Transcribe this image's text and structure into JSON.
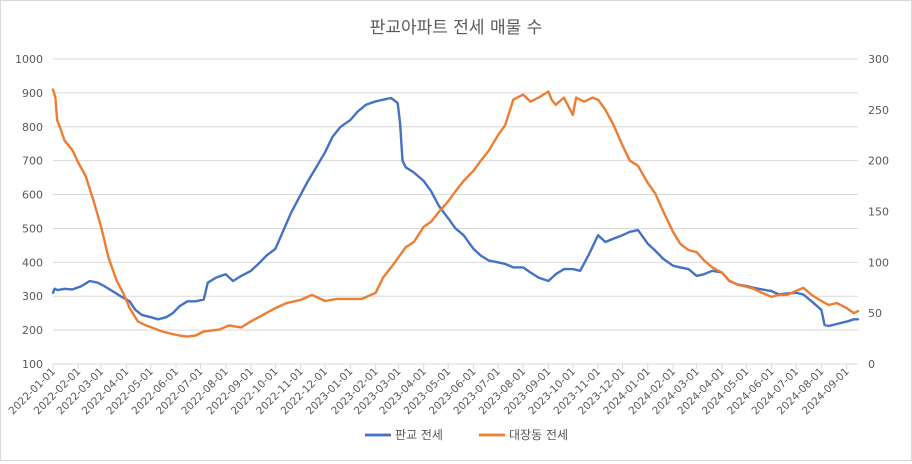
{
  "chart_data": {
    "type": "line",
    "title": "판교아파트 전세 매물 수",
    "xlabel": "",
    "ylabel": "",
    "ylim": [
      100,
      1000
    ],
    "y2lim": [
      0,
      300
    ],
    "yticks": [
      "100",
      "200",
      "300",
      "400",
      "500",
      "600",
      "700",
      "800",
      "900",
      "1000"
    ],
    "y2ticks": [
      "0",
      "50",
      "100",
      "150",
      "200",
      "250",
      "300"
    ],
    "x_ticks": [
      "2022-01-01",
      "2022-02-01",
      "2022-03-01",
      "2022-04-01",
      "2022-05-01",
      "2022-06-01",
      "2022-07-01",
      "2022-08-01",
      "2022-09-01",
      "2022-10-01",
      "2022-11-01",
      "2022-12-01",
      "2023-01-01",
      "2023-02-01",
      "2023-03-01",
      "2023-04-01",
      "2023-05-01",
      "2023-06-01",
      "2023-07-01",
      "2023-08-01",
      "2023-09-01",
      "2023-10-01",
      "2023-11-01",
      "2023-12-01",
      "2024-01-01",
      "2024-02-01",
      "2024-03-01",
      "2024-04-01",
      "2024-05-01",
      "2024-06-01",
      "2024-07-01",
      "2024-08-01",
      "2024-09-01"
    ],
    "x_end": "2024-09-15",
    "grid": true,
    "legend_position": "bottom",
    "series": [
      {
        "name": "판교 전세",
        "axis": "left",
        "color": "#4472C4",
        "points": [
          [
            "2022-01-01",
            310
          ],
          [
            "2022-01-03",
            322
          ],
          [
            "2022-01-07",
            318
          ],
          [
            "2022-01-15",
            322
          ],
          [
            "2022-01-25",
            320
          ],
          [
            "2022-02-05",
            330
          ],
          [
            "2022-02-15",
            345
          ],
          [
            "2022-02-25",
            340
          ],
          [
            "2022-03-05",
            330
          ],
          [
            "2022-03-15",
            315
          ],
          [
            "2022-03-25",
            300
          ],
          [
            "2022-04-05",
            285
          ],
          [
            "2022-04-12",
            260
          ],
          [
            "2022-04-20",
            245
          ],
          [
            "2022-05-01",
            238
          ],
          [
            "2022-05-10",
            232
          ],
          [
            "2022-05-20",
            238
          ],
          [
            "2022-05-28",
            250
          ],
          [
            "2022-06-05",
            270
          ],
          [
            "2022-06-15",
            285
          ],
          [
            "2022-06-25",
            285
          ],
          [
            "2022-07-05",
            290
          ],
          [
            "2022-07-10",
            340
          ],
          [
            "2022-07-20",
            355
          ],
          [
            "2022-08-01",
            365
          ],
          [
            "2022-08-10",
            345
          ],
          [
            "2022-08-20",
            360
          ],
          [
            "2022-09-01",
            375
          ],
          [
            "2022-09-10",
            395
          ],
          [
            "2022-09-20",
            420
          ],
          [
            "2022-10-01",
            440
          ],
          [
            "2022-10-10",
            490
          ],
          [
            "2022-10-20",
            545
          ],
          [
            "2022-11-01",
            600
          ],
          [
            "2022-11-10",
            640
          ],
          [
            "2022-11-20",
            680
          ],
          [
            "2022-12-01",
            725
          ],
          [
            "2022-12-10",
            770
          ],
          [
            "2022-12-20",
            800
          ],
          [
            "2023-01-01",
            820
          ],
          [
            "2023-01-10",
            845
          ],
          [
            "2023-01-20",
            865
          ],
          [
            "2023-02-01",
            875
          ],
          [
            "2023-02-10",
            880
          ],
          [
            "2023-02-20",
            885
          ],
          [
            "2023-02-28",
            870
          ],
          [
            "2023-03-03",
            810
          ],
          [
            "2023-03-06",
            700
          ],
          [
            "2023-03-10",
            680
          ],
          [
            "2023-03-20",
            665
          ],
          [
            "2023-04-01",
            640
          ],
          [
            "2023-04-10",
            610
          ],
          [
            "2023-04-20",
            565
          ],
          [
            "2023-05-01",
            530
          ],
          [
            "2023-05-10",
            500
          ],
          [
            "2023-05-20",
            480
          ],
          [
            "2023-06-01",
            440
          ],
          [
            "2023-06-10",
            420
          ],
          [
            "2023-06-20",
            405
          ],
          [
            "2023-07-01",
            400
          ],
          [
            "2023-07-10",
            395
          ],
          [
            "2023-07-20",
            385
          ],
          [
            "2023-08-01",
            385
          ],
          [
            "2023-08-10",
            370
          ],
          [
            "2023-08-20",
            355
          ],
          [
            "2023-09-01",
            345
          ],
          [
            "2023-09-10",
            365
          ],
          [
            "2023-09-20",
            380
          ],
          [
            "2023-10-01",
            380
          ],
          [
            "2023-10-10",
            375
          ],
          [
            "2023-10-20",
            420
          ],
          [
            "2023-11-01",
            480
          ],
          [
            "2023-11-10",
            460
          ],
          [
            "2023-11-20",
            470
          ],
          [
            "2023-12-01",
            480
          ],
          [
            "2023-12-10",
            490
          ],
          [
            "2023-12-20",
            495
          ],
          [
            "2024-01-01",
            455
          ],
          [
            "2024-01-10",
            435
          ],
          [
            "2024-01-20",
            410
          ],
          [
            "2024-02-01",
            390
          ],
          [
            "2024-02-10",
            385
          ],
          [
            "2024-02-20",
            380
          ],
          [
            "2024-03-01",
            360
          ],
          [
            "2024-03-10",
            365
          ],
          [
            "2024-03-20",
            375
          ],
          [
            "2024-04-01",
            370
          ],
          [
            "2024-04-10",
            345
          ],
          [
            "2024-04-20",
            335
          ],
          [
            "2024-05-01",
            330
          ],
          [
            "2024-05-10",
            325
          ],
          [
            "2024-05-20",
            320
          ],
          [
            "2024-06-01",
            315
          ],
          [
            "2024-06-10",
            305
          ],
          [
            "2024-06-20",
            308
          ],
          [
            "2024-07-01",
            310
          ],
          [
            "2024-07-10",
            305
          ],
          [
            "2024-07-20",
            285
          ],
          [
            "2024-08-01",
            260
          ],
          [
            "2024-08-05",
            215
          ],
          [
            "2024-08-10",
            212
          ],
          [
            "2024-08-20",
            218
          ],
          [
            "2024-09-01",
            225
          ],
          [
            "2024-09-10",
            232
          ],
          [
            "2024-09-15",
            232
          ]
        ]
      },
      {
        "name": "대장동 전세",
        "axis": "right",
        "color": "#ED7D31",
        "points": [
          [
            "2022-01-01",
            270
          ],
          [
            "2022-01-04",
            262
          ],
          [
            "2022-01-06",
            240
          ],
          [
            "2022-01-10",
            232
          ],
          [
            "2022-01-15",
            220
          ],
          [
            "2022-01-25",
            210
          ],
          [
            "2022-02-01",
            198
          ],
          [
            "2022-02-10",
            185
          ],
          [
            "2022-02-20",
            160
          ],
          [
            "2022-03-01",
            135
          ],
          [
            "2022-03-10",
            105
          ],
          [
            "2022-03-20",
            82
          ],
          [
            "2022-03-28",
            70
          ],
          [
            "2022-04-05",
            55
          ],
          [
            "2022-04-15",
            42
          ],
          [
            "2022-04-25",
            38
          ],
          [
            "2022-05-05",
            35
          ],
          [
            "2022-05-15",
            32
          ],
          [
            "2022-05-25",
            30
          ],
          [
            "2022-06-05",
            28
          ],
          [
            "2022-06-15",
            27
          ],
          [
            "2022-06-25",
            28
          ],
          [
            "2022-07-05",
            32
          ],
          [
            "2022-07-15",
            33
          ],
          [
            "2022-07-25",
            34
          ],
          [
            "2022-08-05",
            38
          ],
          [
            "2022-08-20",
            36
          ],
          [
            "2022-09-01",
            42
          ],
          [
            "2022-09-15",
            48
          ],
          [
            "2022-10-01",
            55
          ],
          [
            "2022-10-15",
            60
          ],
          [
            "2022-11-01",
            63
          ],
          [
            "2022-11-15",
            68
          ],
          [
            "2022-12-01",
            62
          ],
          [
            "2022-12-15",
            64
          ],
          [
            "2023-01-01",
            64
          ],
          [
            "2023-01-15",
            64
          ],
          [
            "2023-02-01",
            70
          ],
          [
            "2023-02-10",
            85
          ],
          [
            "2023-02-20",
            95
          ],
          [
            "2023-03-01",
            105
          ],
          [
            "2023-03-10",
            115
          ],
          [
            "2023-03-20",
            120
          ],
          [
            "2023-04-01",
            135
          ],
          [
            "2023-04-10",
            140
          ],
          [
            "2023-04-20",
            150
          ],
          [
            "2023-05-01",
            160
          ],
          [
            "2023-05-10",
            170
          ],
          [
            "2023-05-20",
            180
          ],
          [
            "2023-06-01",
            190
          ],
          [
            "2023-06-10",
            200
          ],
          [
            "2023-06-20",
            210
          ],
          [
            "2023-07-01",
            225
          ],
          [
            "2023-07-10",
            235
          ],
          [
            "2023-07-20",
            260
          ],
          [
            "2023-08-01",
            265
          ],
          [
            "2023-08-10",
            258
          ],
          [
            "2023-08-20",
            262
          ],
          [
            "2023-09-01",
            268
          ],
          [
            "2023-09-05",
            260
          ],
          [
            "2023-09-10",
            255
          ],
          [
            "2023-09-20",
            262
          ],
          [
            "2023-10-01",
            245
          ],
          [
            "2023-10-05",
            262
          ],
          [
            "2023-10-15",
            258
          ],
          [
            "2023-10-25",
            262
          ],
          [
            "2023-11-01",
            260
          ],
          [
            "2023-11-10",
            250
          ],
          [
            "2023-11-20",
            235
          ],
          [
            "2023-12-01",
            215
          ],
          [
            "2023-12-10",
            200
          ],
          [
            "2023-12-20",
            195
          ],
          [
            "2024-01-01",
            178
          ],
          [
            "2024-01-10",
            168
          ],
          [
            "2024-01-20",
            150
          ],
          [
            "2024-02-01",
            130
          ],
          [
            "2024-02-10",
            118
          ],
          [
            "2024-02-20",
            112
          ],
          [
            "2024-03-01",
            110
          ],
          [
            "2024-03-10",
            102
          ],
          [
            "2024-03-20",
            95
          ],
          [
            "2024-04-01",
            90
          ],
          [
            "2024-04-10",
            82
          ],
          [
            "2024-04-20",
            78
          ],
          [
            "2024-05-01",
            76
          ],
          [
            "2024-05-10",
            74
          ],
          [
            "2024-05-20",
            70
          ],
          [
            "2024-06-01",
            66
          ],
          [
            "2024-06-10",
            68
          ],
          [
            "2024-06-20",
            68
          ],
          [
            "2024-07-01",
            72
          ],
          [
            "2024-07-10",
            75
          ],
          [
            "2024-07-20",
            68
          ],
          [
            "2024-08-01",
            62
          ],
          [
            "2024-08-10",
            58
          ],
          [
            "2024-08-20",
            60
          ],
          [
            "2024-09-01",
            55
          ],
          [
            "2024-09-10",
            50
          ],
          [
            "2024-09-15",
            52
          ]
        ]
      }
    ]
  }
}
